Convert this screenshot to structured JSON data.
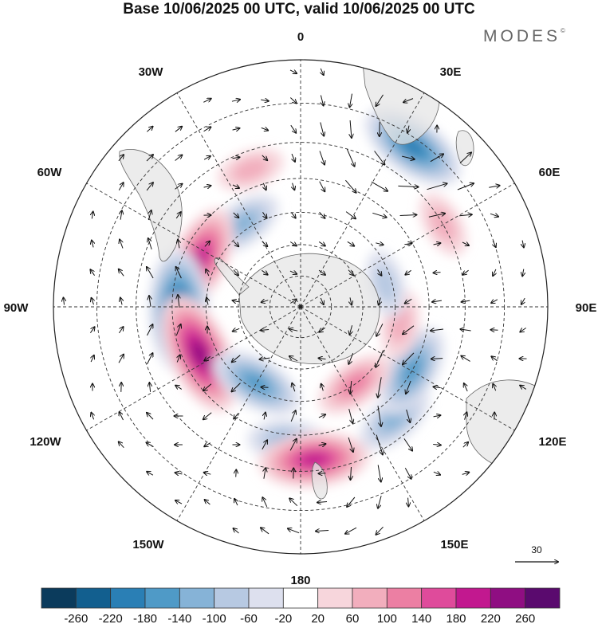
{
  "title": "Base 10/06/2025 00 UTC, valid 10/06/2025 00 UTC",
  "brand": "MODES",
  "brand_mark": "©",
  "longitude_labels": {
    "lon_0": "0",
    "lon_30e": "30E",
    "lon_60e": "60E",
    "lon_90e": "90E",
    "lon_120e": "120E",
    "lon_150e": "150E",
    "lon_180": "180",
    "lon_150w": "150W",
    "lon_120w": "120W",
    "lon_90w": "90W",
    "lon_60w": "60W",
    "lon_30w": "30W"
  },
  "vector_scale": {
    "value": "30"
  },
  "colorbar": {
    "labels": [
      "-260",
      "-220",
      "-180",
      "-140",
      "-100",
      "-60",
      "-20",
      "20",
      "60",
      "100",
      "140",
      "180",
      "220",
      "260"
    ],
    "colors": [
      "#0b3b5c",
      "#125f8f",
      "#2a7fb5",
      "#4f9ac7",
      "#86b3d7",
      "#b7c9e2",
      "#dde0ee",
      "#ffffff",
      "#f7d6dc",
      "#f2aebd",
      "#ec7fa3",
      "#df4b9b",
      "#c2188f",
      "#8f0e82",
      "#5a0a6e"
    ]
  },
  "chart_data": {
    "type": "heatmap",
    "title": "Base 10/06/2025 00 UTC, valid 10/06/2025 00 UTC",
    "projection": "south polar stereographic",
    "vector_reference": 30,
    "colorbar_levels": [
      -260,
      -220,
      -180,
      -140,
      -100,
      -60,
      -20,
      20,
      60,
      100,
      140,
      180,
      220,
      260
    ],
    "anomaly_centers": [
      {
        "lon": 35,
        "lat": -32,
        "value": -180
      },
      {
        "lon": -20,
        "lat": -45,
        "value": 60
      },
      {
        "lon": -35,
        "lat": -58,
        "value": -100
      },
      {
        "lon": -65,
        "lat": -55,
        "value": 180
      },
      {
        "lon": -92,
        "lat": -52,
        "value": -220
      },
      {
        "lon": -115,
        "lat": -55,
        "value": 220
      },
      {
        "lon": -150,
        "lat": -62,
        "value": -140
      },
      {
        "lon": -175,
        "lat": -48,
        "value": -100
      },
      {
        "lon": 175,
        "lat": -43,
        "value": 180
      },
      {
        "lon": 140,
        "lat": -45,
        "value": -100
      },
      {
        "lon": 120,
        "lat": -50,
        "value": -140
      },
      {
        "lon": 145,
        "lat": -60,
        "value": 100
      },
      {
        "lon": 60,
        "lat": -40,
        "value": 60
      },
      {
        "lon": 100,
        "lat": -58,
        "value": 60
      },
      {
        "lon": 75,
        "lat": -62,
        "value": -60
      }
    ]
  }
}
